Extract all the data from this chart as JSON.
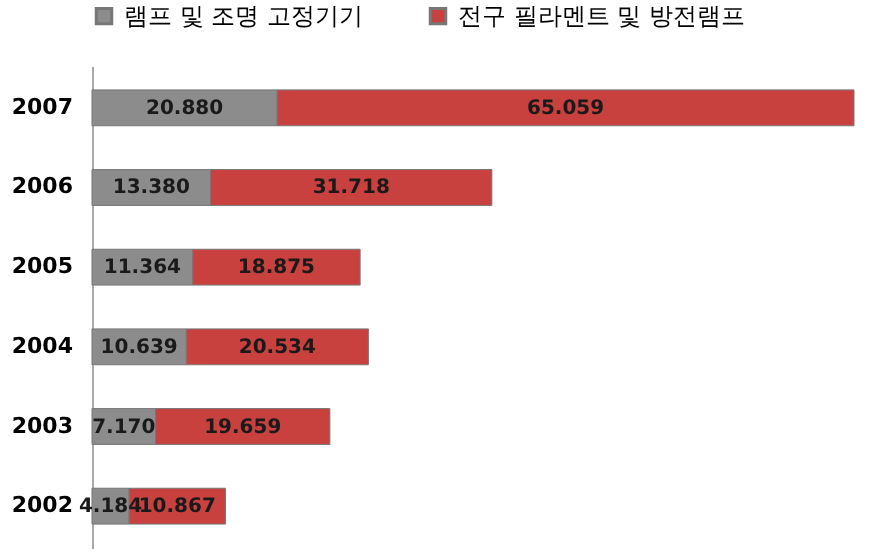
{
  "chart_data": {
    "type": "bar",
    "orientation": "horizontal",
    "stacked": true,
    "categories": [
      "2007",
      "2006",
      "2005",
      "2004",
      "2003",
      "2002"
    ],
    "series": [
      {
        "name": "램프 및 조명 고정기기",
        "color": "#8c8c8c",
        "values": [
          20.88,
          13.38,
          11.364,
          10.639,
          7.17,
          4.184
        ],
        "value_labels": [
          "20.880",
          "13.380",
          "11.364",
          "10.639",
          "7.170",
          "4.184"
        ]
      },
      {
        "name": "전구 필라멘트 및 방전램프",
        "color": "#c9413f",
        "values": [
          65.059,
          31.718,
          18.875,
          20.534,
          19.659,
          10.867
        ],
        "value_labels": [
          "65.059",
          "31.718",
          "18.875",
          "20.534",
          "19.659",
          "10.867"
        ]
      }
    ],
    "legend": "top",
    "grid": false
  }
}
